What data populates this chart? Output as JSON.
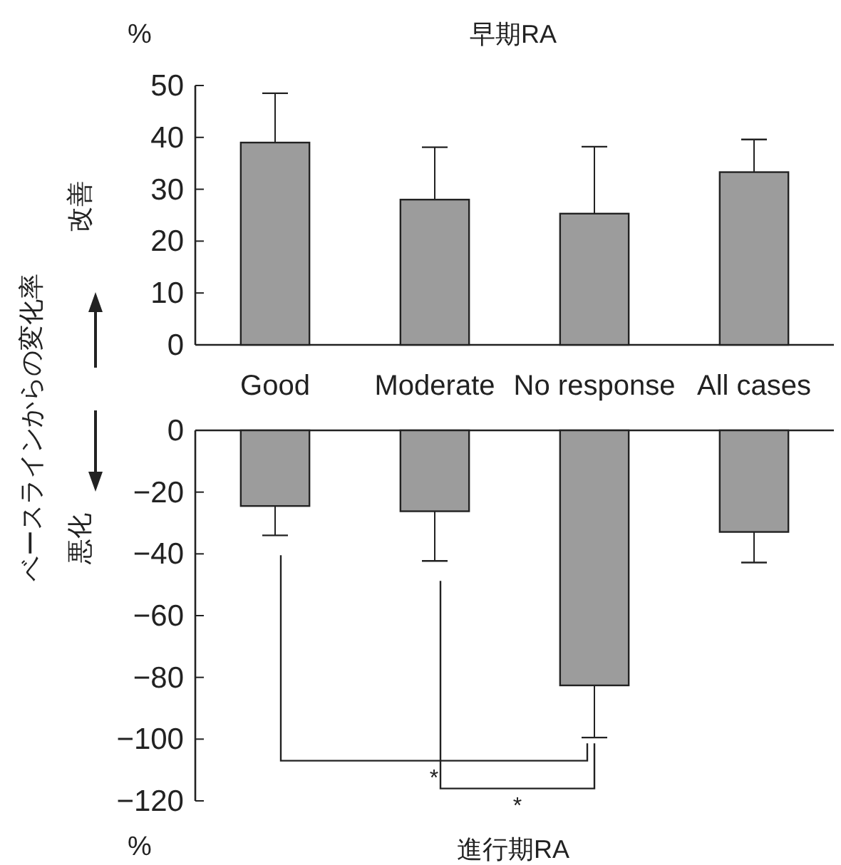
{
  "chart_data": [
    {
      "type": "bar",
      "title": "早期RA",
      "ylabel": "ベースラインからの変化率",
      "categories": [
        "Good",
        "Moderate",
        "No response",
        "All cases"
      ],
      "series": [
        {
          "color": "#9c9c9c",
          "values": [
            39,
            28,
            25.3,
            33.3
          ],
          "errors": [
            [
              39,
              48.5
            ],
            [
              28,
              38.1
            ],
            [
              25.3,
              38.2
            ],
            [
              33.3,
              39.6
            ]
          ]
        }
      ],
      "ylim": [
        0,
        50
      ],
      "yticks": [
        0,
        10,
        20,
        30,
        40,
        50
      ],
      "grid": false,
      "annotations": [
        "%",
        "改善"
      ]
    },
    {
      "type": "bar",
      "xlabel": "進行期RA",
      "categories": [
        null,
        null,
        null,
        null
      ],
      "series": [
        {
          "color": "#9c9c9c",
          "values": [
            -24.5,
            -26.2,
            -82.6,
            -32.9
          ],
          "errors": [
            [
              -34,
              -24.5
            ],
            [
              -42.3,
              -26.2
            ],
            [
              -99.5,
              -82.6
            ],
            [
              -42.8,
              -32.9
            ]
          ]
        }
      ],
      "ylim": [
        -120,
        0
      ],
      "yticks": [
        {
          "value": 0,
          "label": "0"
        },
        {
          "value": -20,
          "label": "−20"
        },
        {
          "value": -40,
          "label": "−40"
        },
        {
          "value": -60,
          "label": "−60"
        },
        {
          "value": -80,
          "label": "−80"
        },
        {
          "value": -100,
          "label": "−100"
        },
        {
          "value": -120,
          "label": "−120"
        }
      ],
      "tick_labels": "y",
      "grid": false,
      "annotations": [
        "%",
        "悪化",
        "*",
        "*"
      ]
    }
  ]
}
